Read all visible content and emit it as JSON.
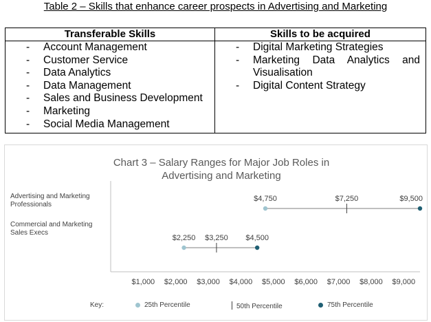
{
  "table": {
    "title": "Table 2 – Skills that enhance career prospects in Advertising and Marketing",
    "headers": [
      "Transferable Skills",
      "Skills to be acquired"
    ],
    "transferable": [
      "Account Management",
      "Customer Service",
      "Data Analytics",
      "Data Management",
      "Sales and Business Development",
      "Marketing",
      "Social Media Management"
    ],
    "acquired": [
      "Digital Marketing Strategies",
      "Marketing Data Analytics and Visualisation",
      "Digital Content Strategy"
    ]
  },
  "chart_data": {
    "type": "range",
    "title": "Chart 3 – Salary Ranges for Major Job Roles in Advertising and Marketing",
    "categories": [
      "Advertising and Marketing Professionals",
      "Commercial and Marketing Sales Execs"
    ],
    "series": [
      {
        "name": "25th Percentile",
        "values": [
          4750,
          2250
        ],
        "labels": [
          "$4,750",
          "$2,250"
        ]
      },
      {
        "name": "50th Percentile",
        "values": [
          7250,
          3250
        ],
        "labels": [
          "$7,250",
          "$3,250"
        ]
      },
      {
        "name": "75th Percentile",
        "values": [
          9500,
          4500
        ],
        "labels": [
          "$9,500",
          "$4,500"
        ]
      }
    ],
    "x_ticks": [
      "$1,000",
      "$2,000",
      "$3,000",
      "$4,000",
      "$5,000",
      "$6,000",
      "$7,000",
      "$8,000",
      "$9,000"
    ],
    "x_tick_values": [
      1000,
      2000,
      3000,
      4000,
      5000,
      6000,
      7000,
      8000,
      9000
    ],
    "xlim": [
      0,
      9500
    ],
    "key_label": "Key:",
    "grid": false,
    "legend_position": "bottom",
    "colors": {
      "p25": "#9fc5d0",
      "p75": "#1f5f73",
      "line": "#7f7f7f",
      "axis": "#bfbfbf",
      "text": "#404040"
    }
  }
}
